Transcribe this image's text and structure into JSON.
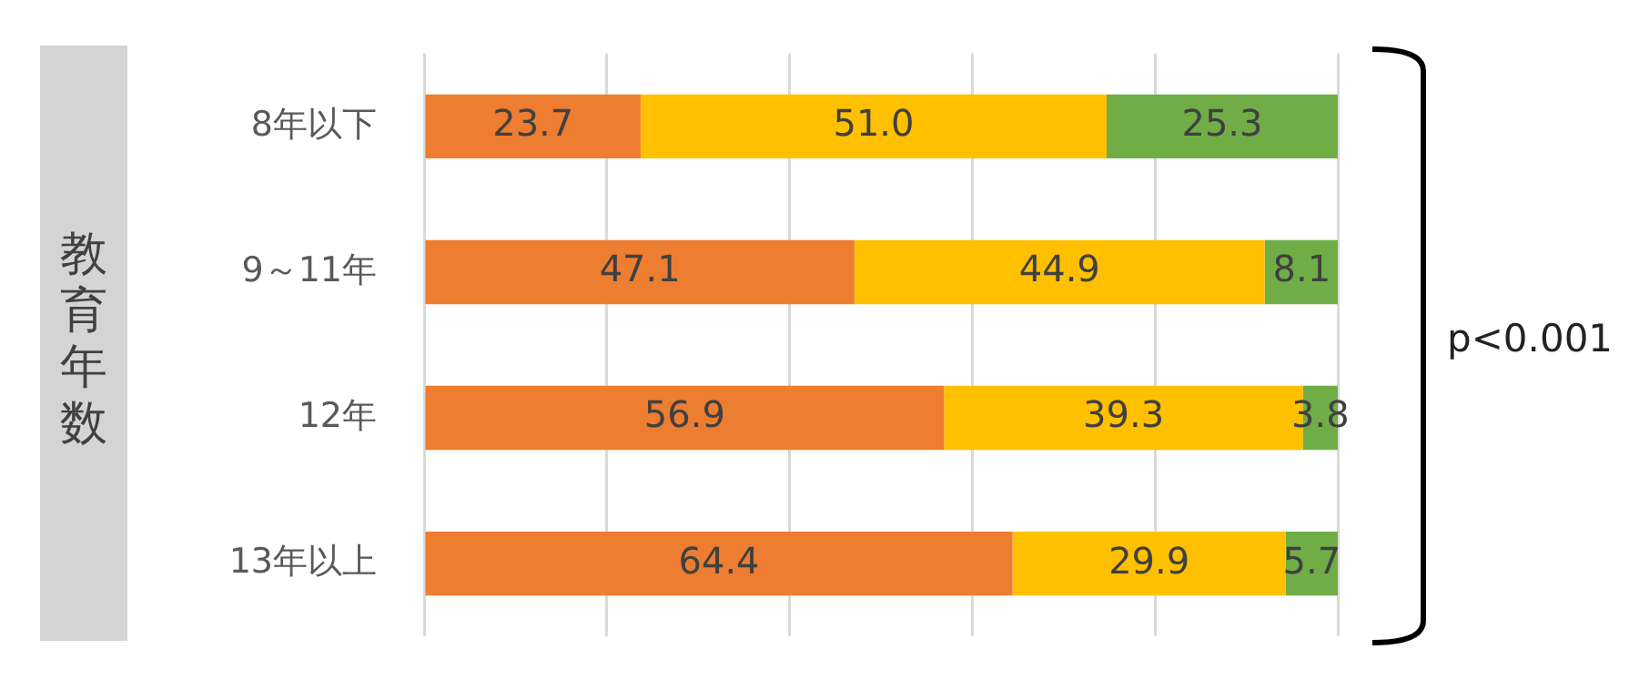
{
  "chart_data": {
    "type": "bar",
    "orientation": "horizontal",
    "stacked": true,
    "ylabel": "教育年数",
    "categories": [
      "8年以下",
      "9～11年",
      "12年",
      "13年以上"
    ],
    "series": [
      {
        "color": "#ed7d31",
        "values": [
          23.7,
          47.1,
          56.9,
          64.4
        ],
        "value_labels": [
          "23.7",
          "47.1",
          "56.9",
          "64.4"
        ]
      },
      {
        "color": "#ffc000",
        "values": [
          51.0,
          44.9,
          39.3,
          29.9
        ],
        "value_labels": [
          "51.0",
          "44.9",
          "39.3",
          "29.9"
        ]
      },
      {
        "color": "#70ad47",
        "values": [
          25.3,
          8.1,
          3.8,
          5.7
        ],
        "value_labels": [
          "25.3",
          "8.1",
          "3.8",
          "5.7"
        ]
      }
    ],
    "xlim": [
      0,
      100
    ],
    "xticks": [
      {
        "value": 0,
        "label": null
      },
      {
        "value": 20,
        "label": null
      },
      {
        "value": 40,
        "label": null
      },
      {
        "value": 60,
        "label": null
      },
      {
        "value": 80,
        "label": null
      },
      {
        "value": 100,
        "label": null
      }
    ],
    "grid": "x",
    "tick_labels": "y",
    "annotations": [
      "p<0.001"
    ]
  }
}
